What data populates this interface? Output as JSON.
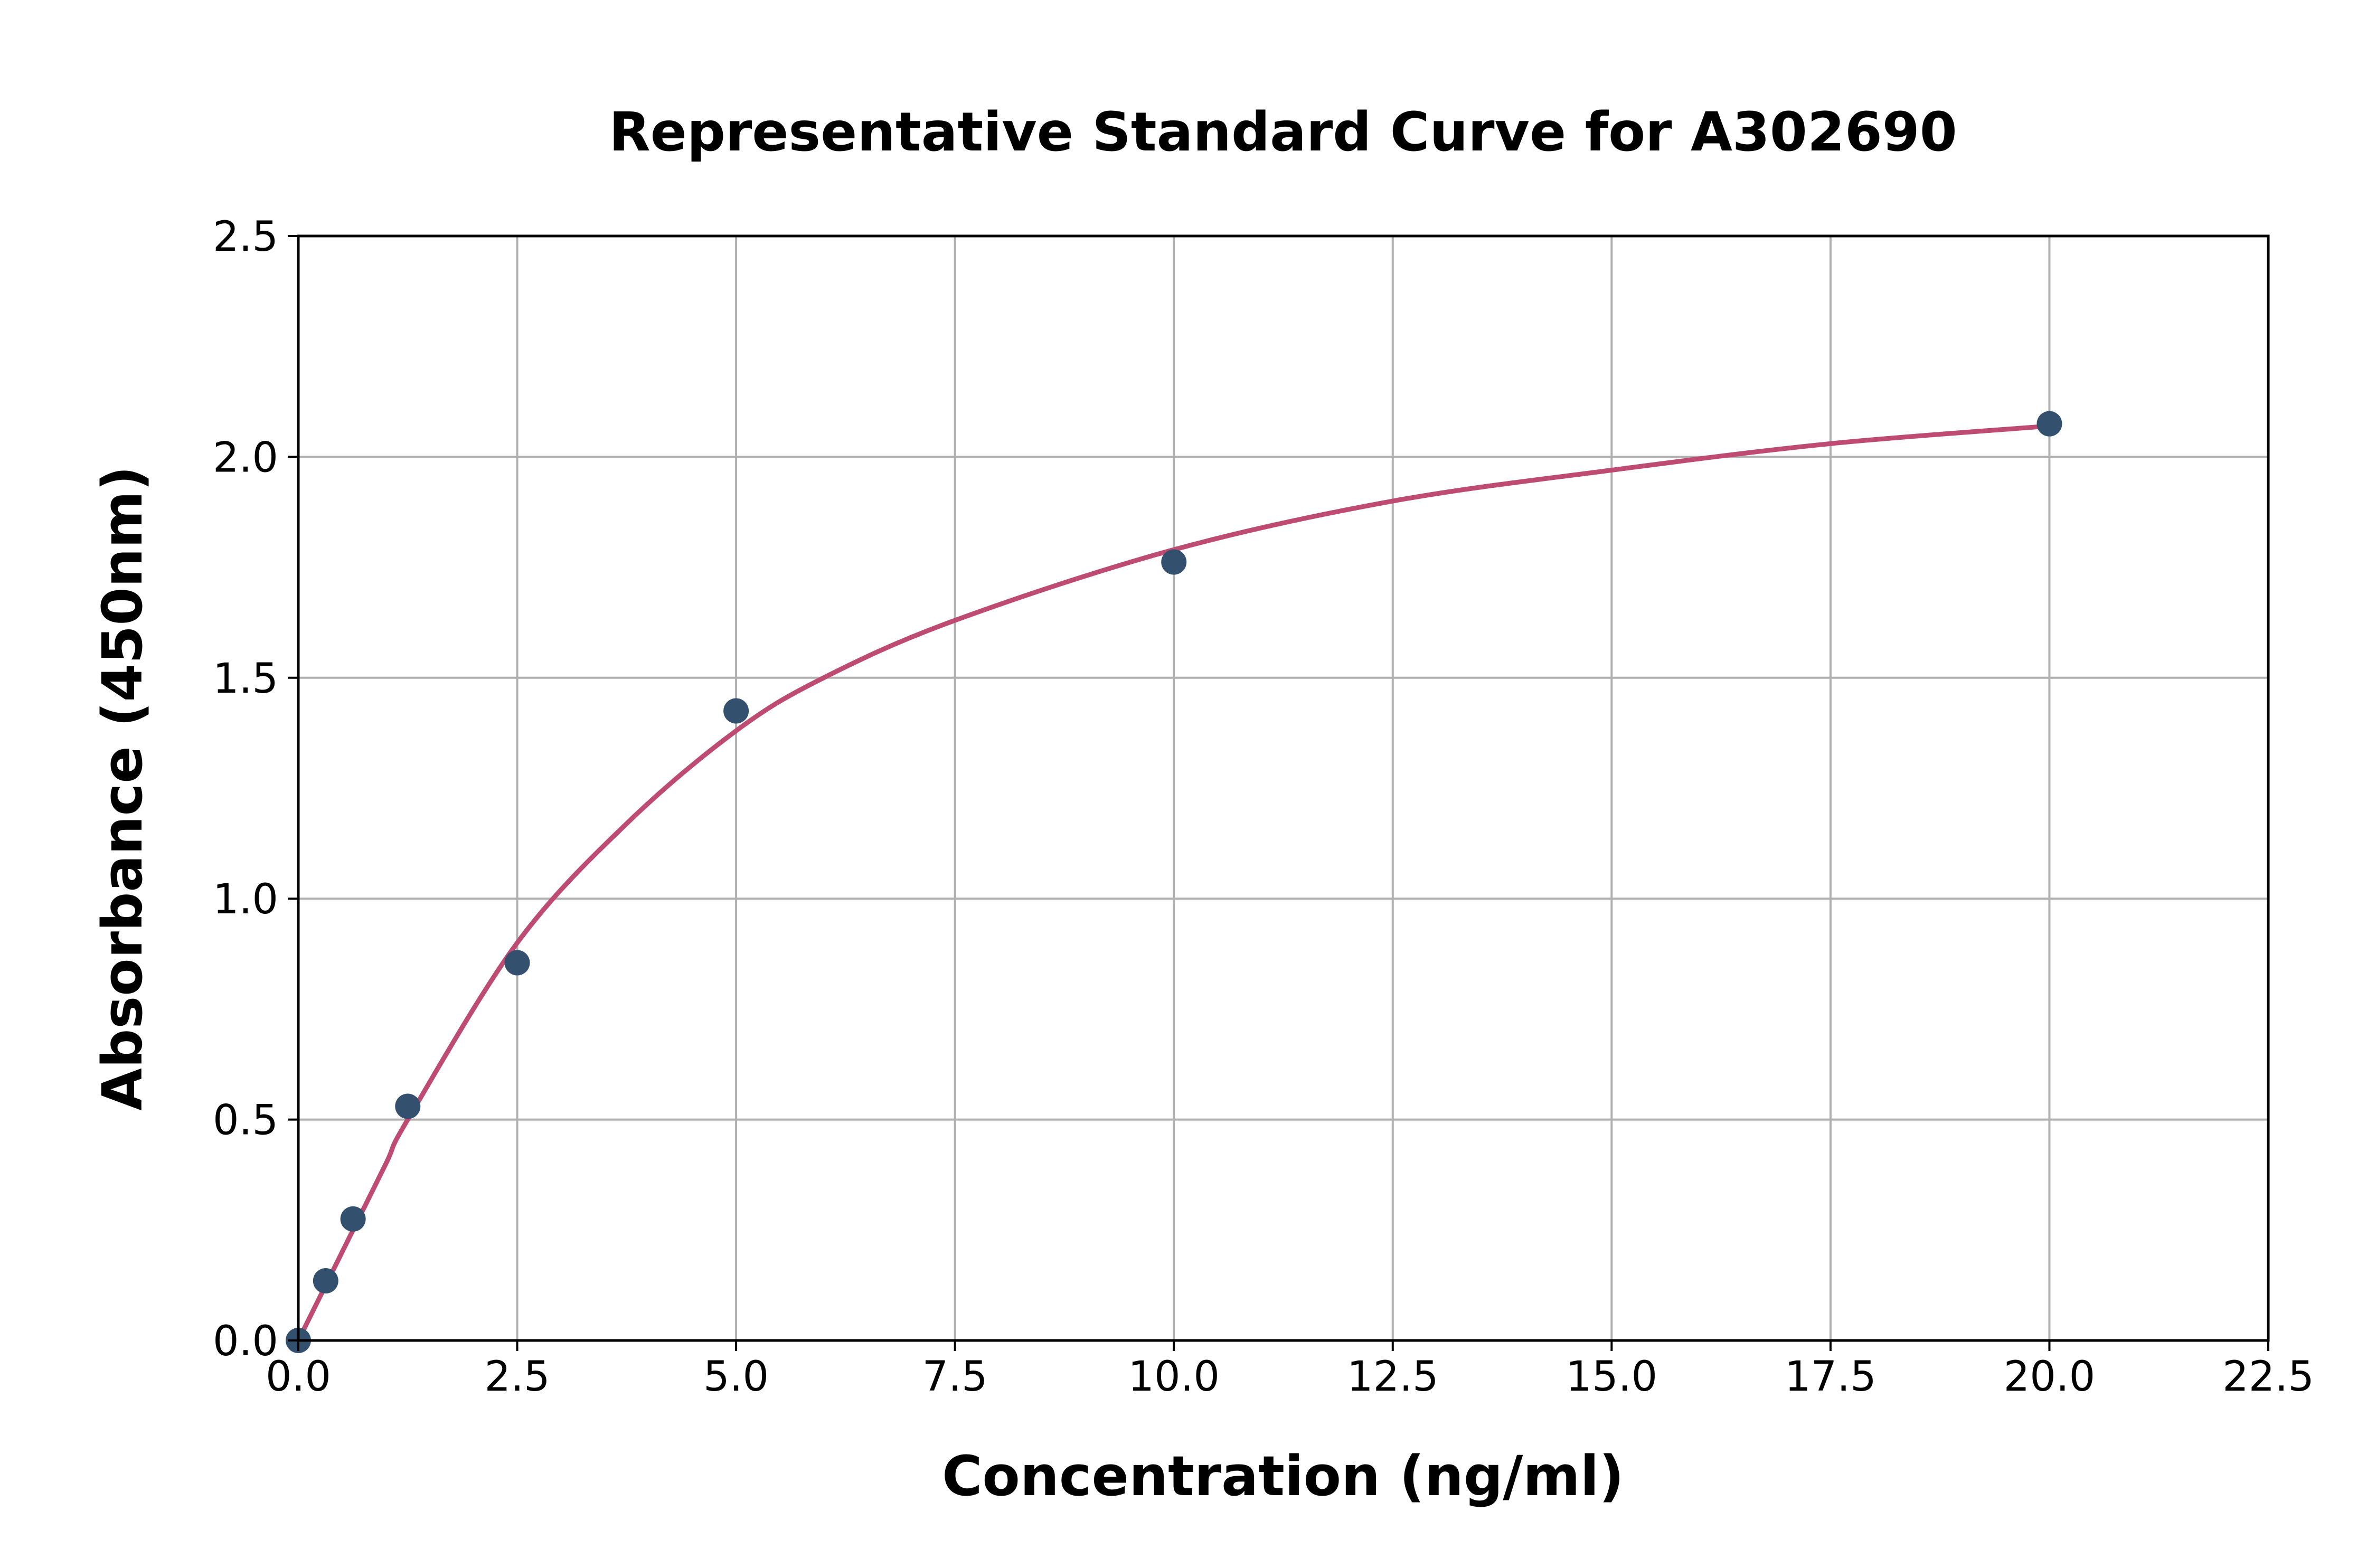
{
  "chart_data": {
    "type": "scatter",
    "title": "Representative Standard Curve for A302690",
    "xlabel": "Concentration (ng/ml)",
    "ylabel": "Absorbance (450nm)",
    "xlim": [
      0,
      22.5
    ],
    "ylim": [
      0,
      2.5
    ],
    "xticks": [
      "0.0",
      "2.5",
      "5.0",
      "7.5",
      "10.0",
      "12.5",
      "15.0",
      "17.5",
      "20.0",
      "22.5"
    ],
    "yticks": [
      "0.0",
      "0.5",
      "1.0",
      "1.5",
      "2.0",
      "2.5"
    ],
    "grid": true,
    "points": {
      "x": [
        0,
        0.3125,
        0.625,
        1.25,
        2.5,
        5,
        10,
        20
      ],
      "y": [
        0,
        0.135,
        0.275,
        0.53,
        0.855,
        1.425,
        1.762,
        2.075
      ],
      "color": "#34506f"
    },
    "fit_curve": {
      "x": [
        0,
        0.5,
        1,
        1.25,
        2.5,
        3.75,
        5,
        6,
        7.5,
        10,
        12.5,
        15,
        17.5,
        20
      ],
      "y": [
        0,
        0.2,
        0.4,
        0.5,
        0.9,
        1.17,
        1.38,
        1.5,
        1.63,
        1.79,
        1.9,
        1.97,
        2.03,
        2.07
      ],
      "color": "#be4b72"
    }
  }
}
